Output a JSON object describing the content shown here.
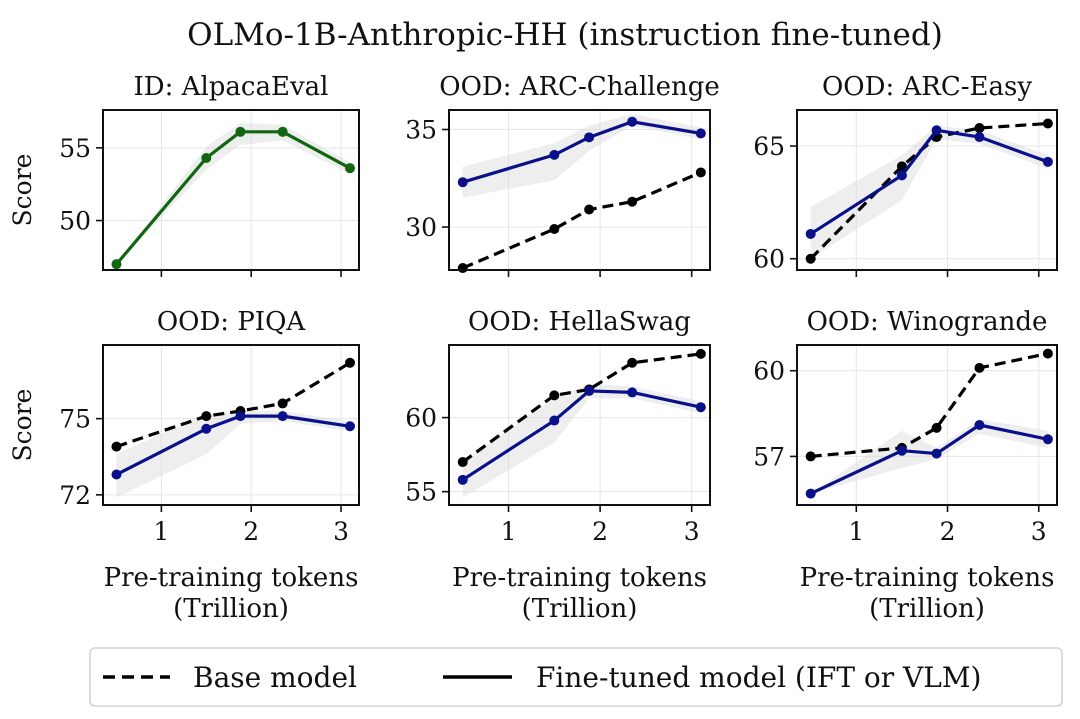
{
  "figure_title": "OLMo-1B-Anthropic-HH (instruction fine-tuned)",
  "legend": {
    "base_label": "Base model",
    "finetuned_label": "Fine-tuned model (IFT or VLM)",
    "placement": "bottom-center"
  },
  "colors": {
    "base": "#000000",
    "finetuned_blue": "#0a108a",
    "finetuned_green": "#116611",
    "band": "#d9d9d9"
  },
  "ylabel": "Score",
  "xlabel_line1": "Pre-training tokens",
  "xlabel_line2": "(Trillion)",
  "chart_data": [
    {
      "type": "line",
      "title": "ID: AlpacaEval",
      "xlim": [
        0.35,
        3.2
      ],
      "ylim": [
        46.6,
        57.6
      ],
      "xticks": [
        1,
        2,
        3
      ],
      "yticks": [
        50,
        55
      ],
      "grid": true,
      "series": [
        {
          "role": "finetuned",
          "color": "#116611",
          "x": [
            0.5,
            1.5,
            1.88,
            2.35,
            3.1
          ],
          "y": [
            47.0,
            54.3,
            56.1,
            56.1,
            53.6
          ],
          "band_lo": [
            47.0,
            53.5,
            55.2,
            55.5,
            53.2
          ],
          "band_hi": [
            47.0,
            55.1,
            56.7,
            56.6,
            54.0
          ]
        }
      ]
    },
    {
      "type": "line",
      "title": "OOD: ARC-Challenge",
      "xlim": [
        0.35,
        3.2
      ],
      "ylim": [
        27.8,
        36.0
      ],
      "xticks": [
        1,
        2,
        3
      ],
      "yticks": [
        30,
        35
      ],
      "grid": true,
      "series": [
        {
          "role": "base",
          "color": "#000000",
          "x": [
            0.5,
            1.5,
            1.88,
            2.35,
            3.1
          ],
          "y": [
            27.9,
            29.9,
            30.9,
            31.3,
            32.8
          ]
        },
        {
          "role": "finetuned",
          "color": "#0a108a",
          "x": [
            0.5,
            1.5,
            1.88,
            2.35,
            3.1
          ],
          "y": [
            32.3,
            33.7,
            34.6,
            35.4,
            34.8
          ],
          "band_lo": [
            31.5,
            32.4,
            33.9,
            35.2,
            34.5
          ],
          "band_hi": [
            33.1,
            34.3,
            35.2,
            35.8,
            35.1
          ]
        }
      ]
    },
    {
      "type": "line",
      "title": "OOD: ARC-Easy",
      "xlim": [
        0.35,
        3.2
      ],
      "ylim": [
        59.5,
        66.6
      ],
      "xticks": [
        1,
        2,
        3
      ],
      "yticks": [
        60,
        65
      ],
      "grid": true,
      "series": [
        {
          "role": "base",
          "color": "#000000",
          "x": [
            0.5,
            1.5,
            1.88,
            2.35,
            3.1
          ],
          "y": [
            60.0,
            64.1,
            65.4,
            65.8,
            66.0
          ]
        },
        {
          "role": "finetuned",
          "color": "#0a108a",
          "x": [
            0.5,
            1.5,
            1.88,
            2.35,
            3.1
          ],
          "y": [
            61.1,
            63.7,
            65.7,
            65.4,
            64.3
          ],
          "band_lo": [
            60.0,
            62.6,
            65.3,
            65.1,
            64.0
          ],
          "band_hi": [
            62.3,
            64.6,
            65.9,
            65.7,
            64.6
          ]
        }
      ]
    },
    {
      "type": "line",
      "title": "OOD: PIQA",
      "xlim": [
        0.35,
        3.2
      ],
      "ylim": [
        71.6,
        77.9
      ],
      "xticks": [
        1,
        2,
        3
      ],
      "yticks": [
        72,
        75
      ],
      "grid": true,
      "series": [
        {
          "role": "base",
          "color": "#000000",
          "x": [
            0.5,
            1.5,
            1.88,
            2.35,
            3.1
          ],
          "y": [
            73.9,
            75.1,
            75.3,
            75.6,
            77.2
          ]
        },
        {
          "role": "finetuned",
          "color": "#0a108a",
          "x": [
            0.5,
            1.5,
            1.88,
            2.35,
            3.1
          ],
          "y": [
            72.8,
            74.6,
            75.1,
            75.1,
            74.7
          ],
          "band_lo": [
            71.9,
            73.6,
            74.8,
            74.9,
            74.5
          ],
          "band_hi": [
            73.6,
            75.2,
            75.3,
            75.3,
            74.9
          ]
        }
      ]
    },
    {
      "type": "line",
      "title": "OOD: HellaSwag",
      "xlim": [
        0.35,
        3.2
      ],
      "ylim": [
        54.1,
        64.9
      ],
      "xticks": [
        1,
        2,
        3
      ],
      "yticks": [
        55,
        60
      ],
      "grid": true,
      "series": [
        {
          "role": "base",
          "color": "#000000",
          "x": [
            0.5,
            1.5,
            1.88,
            2.35,
            3.1
          ],
          "y": [
            57.0,
            61.5,
            61.9,
            63.7,
            64.3
          ]
        },
        {
          "role": "finetuned",
          "color": "#0a108a",
          "x": [
            0.5,
            1.5,
            1.88,
            2.35,
            3.1
          ],
          "y": [
            55.8,
            59.8,
            61.8,
            61.7,
            60.7
          ],
          "band_lo": [
            54.6,
            58.3,
            61.3,
            61.3,
            60.3
          ],
          "band_hi": [
            57.0,
            61.3,
            62.3,
            62.1,
            61.1
          ]
        }
      ]
    },
    {
      "type": "line",
      "title": "OOD: Winogrande",
      "xlim": [
        0.35,
        3.2
      ],
      "ylim": [
        55.3,
        60.9
      ],
      "xticks": [
        1,
        2,
        3
      ],
      "yticks": [
        57,
        60
      ],
      "grid": true,
      "series": [
        {
          "role": "base",
          "color": "#000000",
          "x": [
            0.5,
            1.5,
            1.88,
            2.35,
            3.1
          ],
          "y": [
            57.0,
            57.3,
            58.0,
            60.1,
            60.6
          ]
        },
        {
          "role": "finetuned",
          "color": "#0a108a",
          "x": [
            0.5,
            1.5,
            1.88,
            2.35,
            3.1
          ],
          "y": [
            55.7,
            57.2,
            57.1,
            58.1,
            57.6
          ],
          "band_lo": [
            55.7,
            56.6,
            56.9,
            57.8,
            57.3
          ],
          "band_hi": [
            55.7,
            57.9,
            57.3,
            58.3,
            57.9
          ]
        }
      ]
    }
  ]
}
